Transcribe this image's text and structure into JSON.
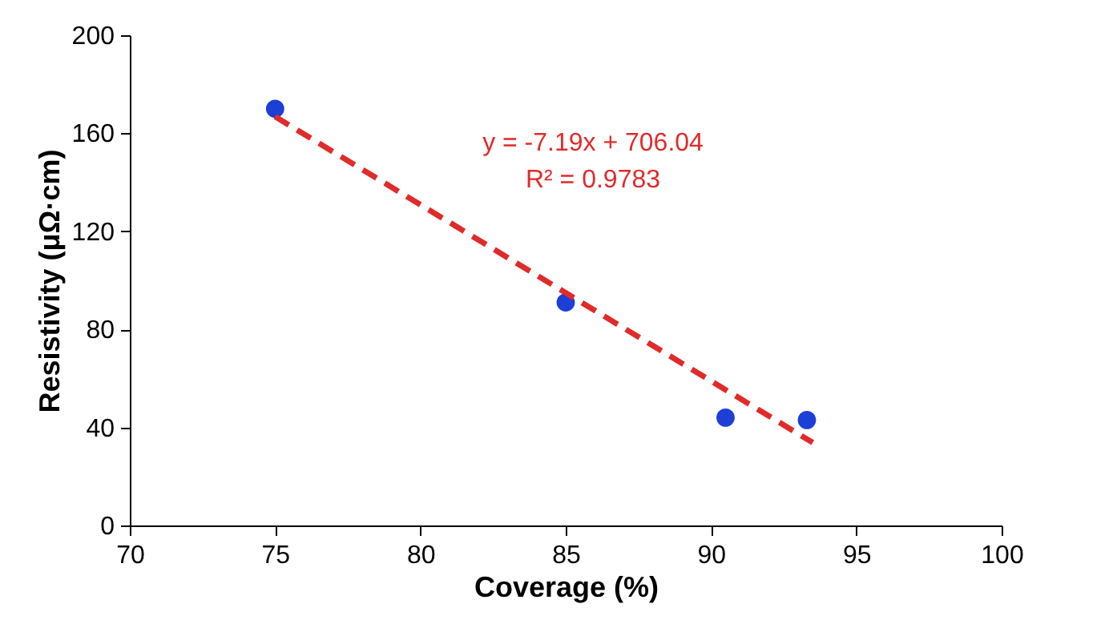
{
  "chart_data": {
    "type": "scatter",
    "xlabel": "Coverage (%)",
    "ylabel": "Resistivity (μΩ·cm)",
    "xlim": [
      70,
      100
    ],
    "xticks": [
      70,
      75,
      80,
      85,
      90,
      95,
      100
    ],
    "ylim": [
      0,
      200
    ],
    "yticks": [
      0,
      40,
      80,
      120,
      160,
      200
    ],
    "grid": false,
    "series": [
      {
        "type": "scatter",
        "color": "#1c3fd6",
        "marker": "circle",
        "x": [
          75,
          85,
          90.5,
          93.3
        ],
        "values": [
          170,
          91,
          44,
          43
        ]
      },
      {
        "type": "line",
        "color": "#e02b2b",
        "line_style": "dashed",
        "marker": "none",
        "x": [
          75,
          93.5
        ],
        "values": [
          166.8,
          33.8
        ]
      }
    ],
    "annotations": [
      "y = -7.19x + 706.04",
      "R² = 0.9783"
    ]
  }
}
